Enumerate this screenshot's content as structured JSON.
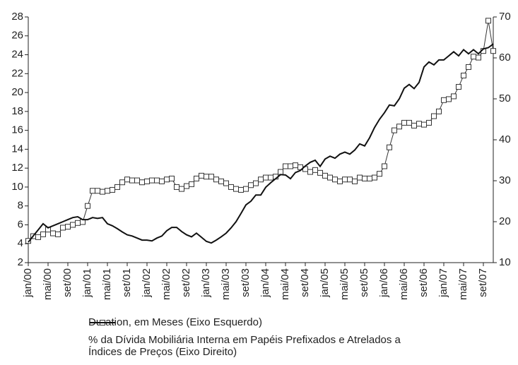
{
  "chart_data": {
    "type": "line",
    "categories": [
      "jan/00",
      null,
      null,
      null,
      "mai/00",
      null,
      null,
      null,
      "set/00",
      null,
      null,
      null,
      "jan/01",
      null,
      null,
      null,
      "mai/01",
      null,
      null,
      null,
      "set/01",
      null,
      null,
      null,
      "jan/02",
      null,
      null,
      null,
      "mai/02",
      null,
      null,
      null,
      "set/02",
      null,
      null,
      null,
      "jan/03",
      null,
      null,
      null,
      "mai/03",
      null,
      null,
      null,
      "set/03",
      null,
      null,
      null,
      "jan/04",
      null,
      null,
      null,
      "mai/04",
      null,
      null,
      null,
      "set/04",
      null,
      null,
      null,
      "jan/05",
      null,
      null,
      null,
      "mai/05",
      null,
      null,
      null,
      "set/05",
      null,
      null,
      null,
      "jan/06",
      null,
      null,
      null,
      "mai/06",
      null,
      null,
      null,
      "set/06",
      null,
      null,
      null,
      "jan/07",
      null,
      null,
      null,
      "mai/07",
      null,
      null,
      null,
      "set/07",
      null,
      null
    ],
    "series": [
      {
        "name": "Duration, em Meses (Eixo Esquerdo)",
        "color": "#333333",
        "marker": "square",
        "axis": "y",
        "values": [
          4.3,
          4.8,
          4.7,
          5.0,
          5.5,
          5.1,
          5.0,
          5.7,
          5.8,
          6.0,
          6.2,
          6.3,
          8.0,
          9.6,
          9.6,
          9.5,
          9.6,
          9.7,
          10.0,
          10.5,
          10.8,
          10.7,
          10.7,
          10.5,
          10.6,
          10.7,
          10.7,
          10.6,
          10.8,
          10.9,
          10.0,
          9.8,
          10.1,
          10.3,
          10.9,
          11.2,
          11.1,
          11.1,
          10.8,
          10.6,
          10.4,
          10.0,
          9.8,
          9.7,
          9.8,
          10.2,
          10.4,
          10.8,
          11.0,
          11.0,
          11.1,
          11.6,
          12.2,
          12.2,
          12.3,
          12.1,
          11.9,
          11.6,
          11.8,
          11.5,
          11.2,
          11.0,
          10.8,
          10.6,
          10.8,
          10.8,
          10.6,
          11.0,
          10.9,
          10.9,
          11.0,
          11.4,
          12.2,
          14.2,
          16.0,
          16.4,
          16.8,
          16.8,
          16.5,
          16.7,
          16.6,
          16.8,
          17.5,
          18.0,
          19.2,
          19.3,
          19.6,
          20.6,
          21.8,
          22.7,
          23.8,
          23.7,
          24.4,
          27.6,
          24.4
        ]
      },
      {
        "name": "% da Dívida Mobiliária Interna em Papéis Prefixados e Atrelados a Índices de Preços (Eixo Direito)",
        "color": "#111111",
        "axis": "y2",
        "values": [
          15,
          16.5,
          18,
          19.5,
          18.5,
          19,
          19.5,
          20,
          20.5,
          21,
          21.2,
          20.5,
          20.5,
          21,
          20.8,
          21,
          19.5,
          19,
          18.3,
          17.5,
          16.8,
          16.5,
          16,
          15.5,
          15.5,
          15.3,
          16,
          16.5,
          17.8,
          18.6,
          18.6,
          17.6,
          16.8,
          16.3,
          17.2,
          16.2,
          15.2,
          14.8,
          15.5,
          16.3,
          17.2,
          18.5,
          20,
          22,
          24.1,
          25,
          26.5,
          26.5,
          28.4,
          29.5,
          30.5,
          31.5,
          31.4,
          30.5,
          32,
          32.5,
          33.6,
          34.5,
          35,
          33.5,
          35.3,
          36,
          35.5,
          36.5,
          37,
          36.5,
          37.5,
          39,
          38.5,
          40.5,
          43,
          45,
          46.6,
          48.5,
          48.3,
          50,
          52.6,
          53.5,
          52.5,
          54,
          57.8,
          59,
          58.3,
          59.5,
          59.5,
          60.5,
          61.5,
          60.5,
          62,
          61,
          62,
          61,
          62.2,
          62.5,
          63.4
        ]
      }
    ],
    "ylim": [
      2,
      28
    ],
    "yticks": [
      2,
      4,
      6,
      8,
      10,
      12,
      14,
      16,
      18,
      20,
      22,
      24,
      26,
      28
    ],
    "y2lim": [
      10,
      70
    ],
    "y2ticks": [
      10,
      20,
      30,
      40,
      50,
      60,
      70
    ],
    "grid": false
  }
}
